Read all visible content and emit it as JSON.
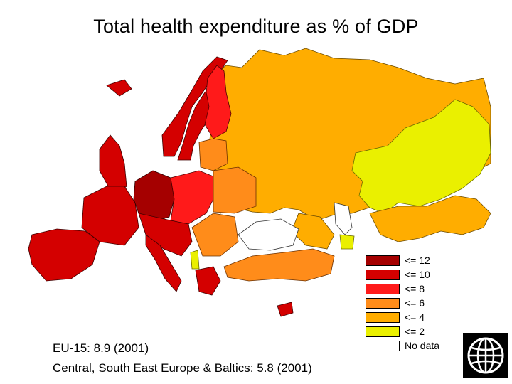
{
  "title": "Total health expenditure as % of GDP",
  "legend": [
    {
      "label": "<= 12",
      "color": "#a50000"
    },
    {
      "label": "<= 10",
      "color": "#d40000"
    },
    {
      "label": "<= 8",
      "color": "#ff1a1a"
    },
    {
      "label": "<= 6",
      "color": "#ff8c1a"
    },
    {
      "label": "<= 4",
      "color": "#ffad00"
    },
    {
      "label": "<= 2",
      "color": "#eaf000"
    },
    {
      "label": "No data",
      "color": "#ffffff"
    }
  ],
  "stats": {
    "eu15": "EU-15: 8.9 (2001)",
    "cee": "Central, South East Europe & Baltics: 5.8 (2001)"
  },
  "logo_icon": "globe-icon"
}
